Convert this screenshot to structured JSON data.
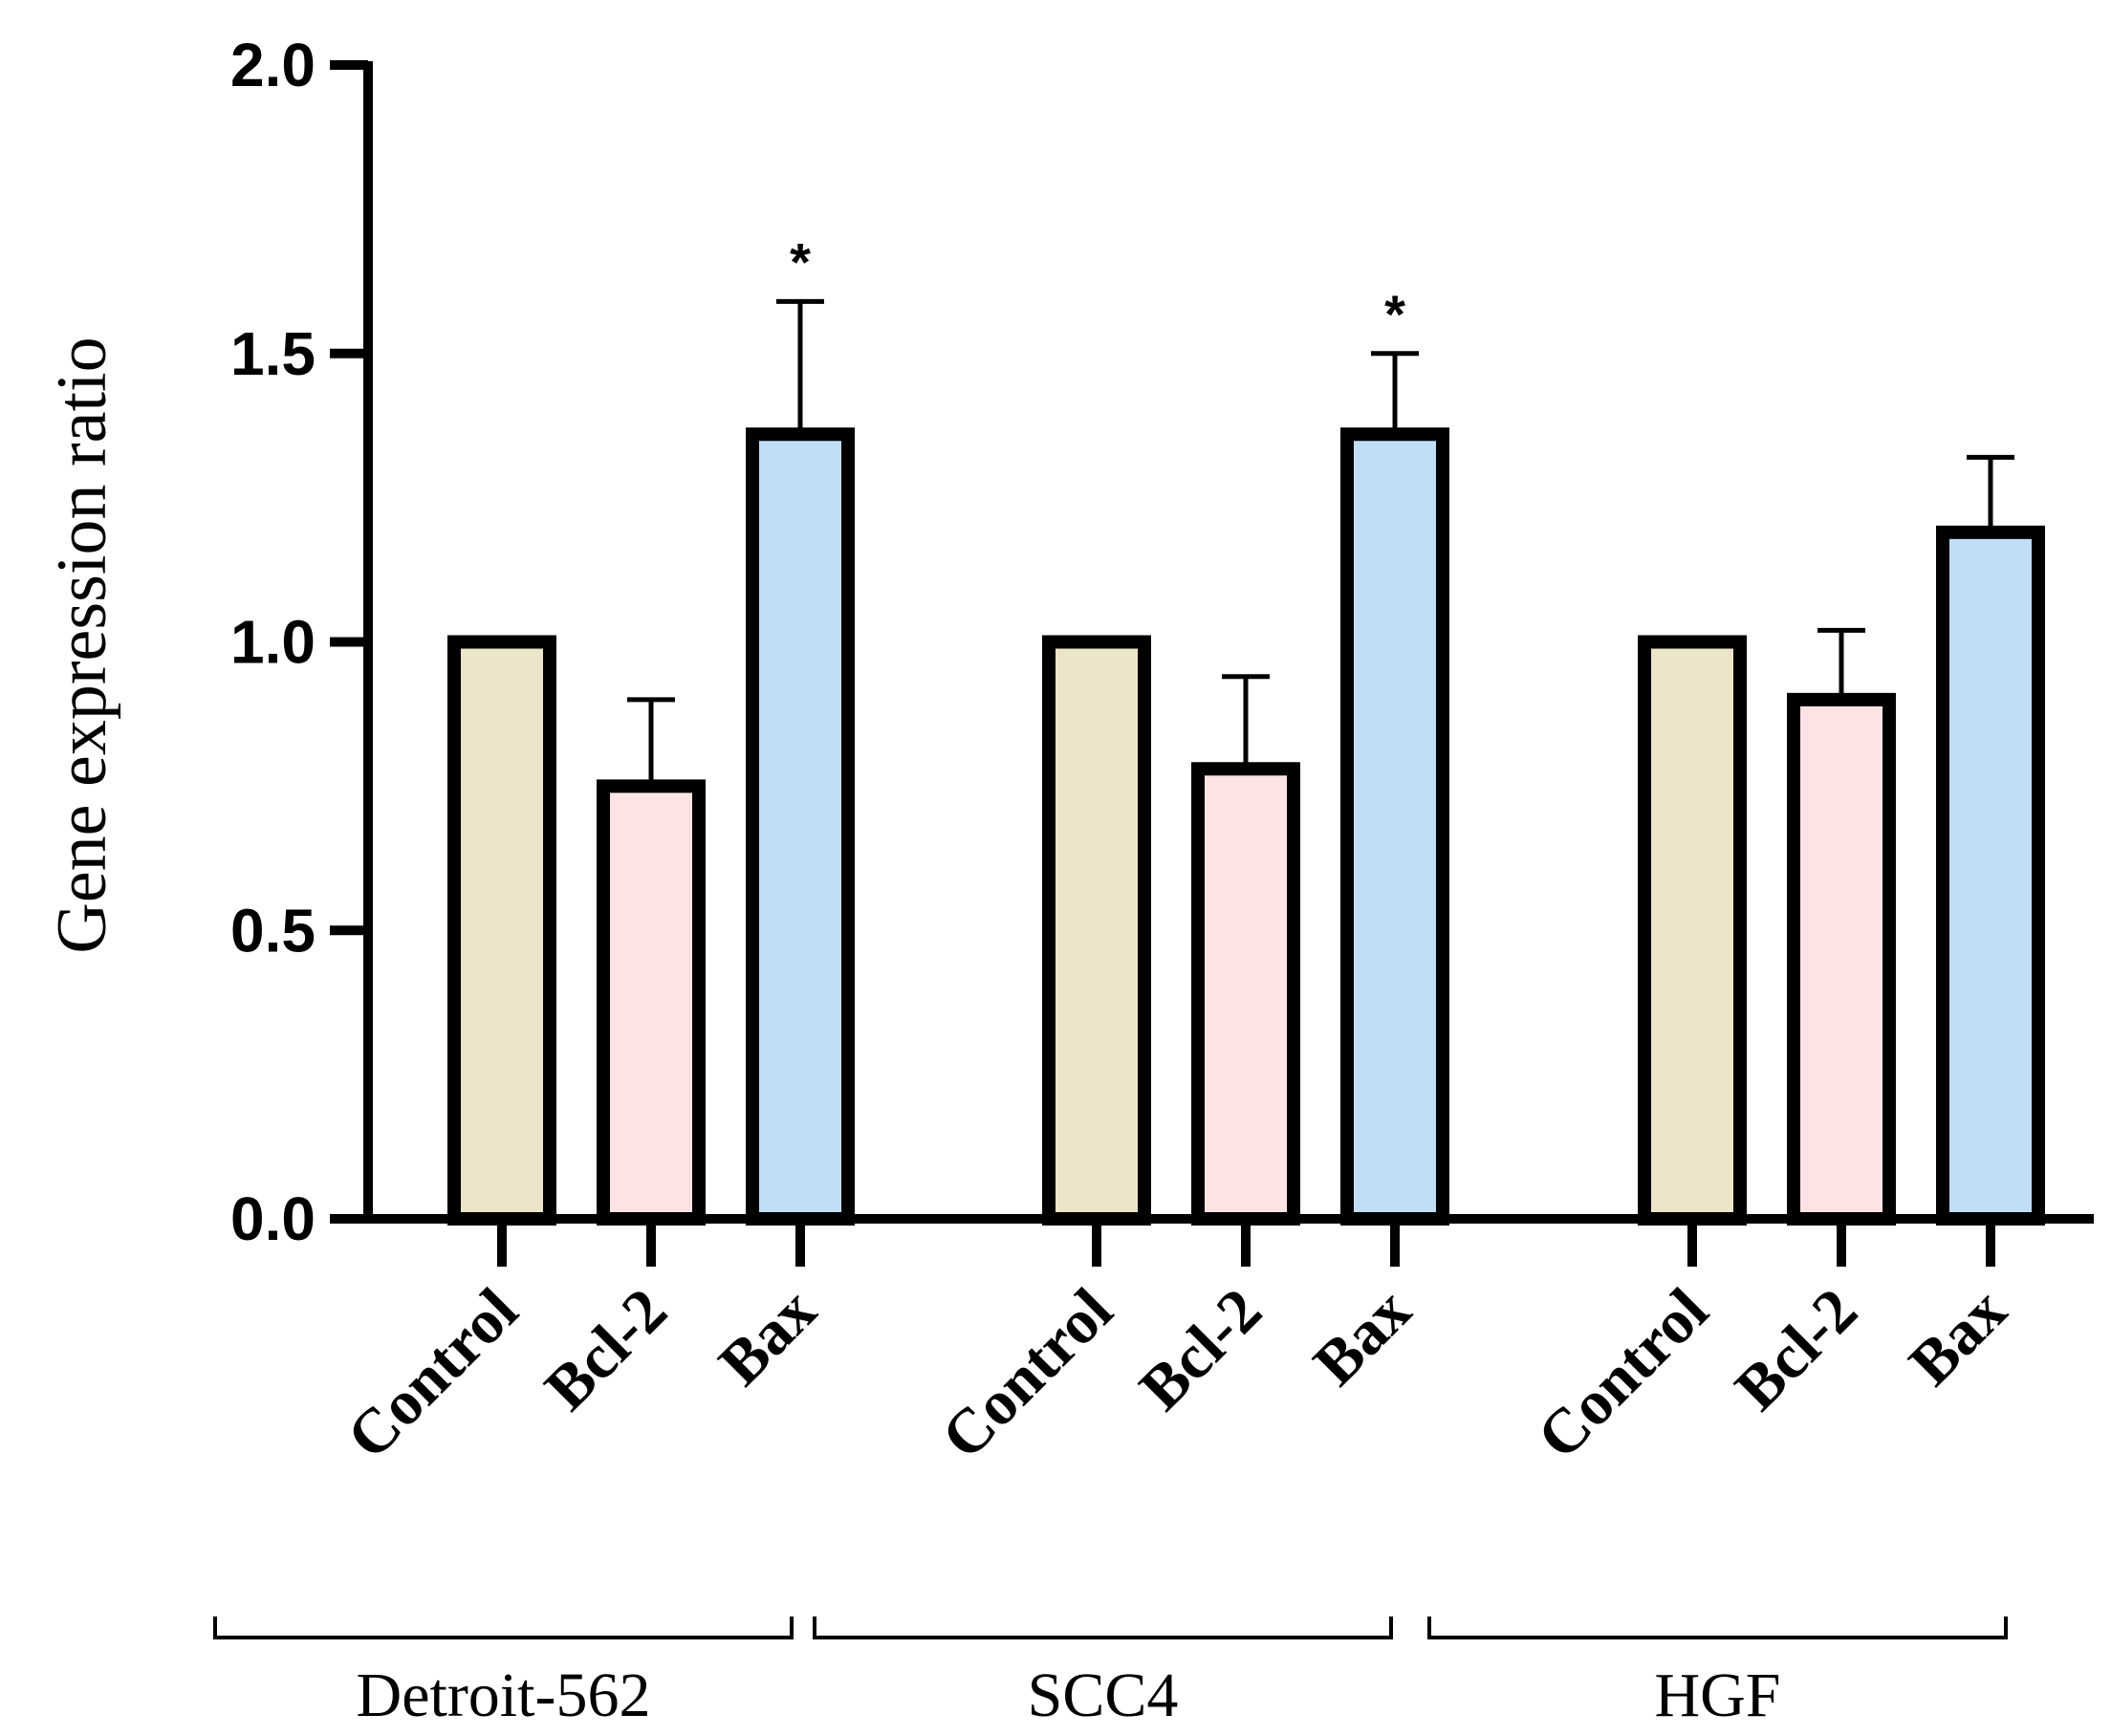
{
  "chart_data": {
    "type": "bar",
    "ylabel": "Gene expression ratio",
    "ylim": [
      0,
      2
    ],
    "yticks": [
      "0.0",
      "0.5",
      "1.0",
      "1.5",
      "2.0"
    ],
    "groups": [
      {
        "name": "Detroit-562",
        "bars": [
          {
            "category": "Control",
            "value": 1.0,
            "error": 0,
            "sig": "",
            "color": "#ede5c9"
          },
          {
            "category": "Bcl-2",
            "value": 0.75,
            "error": 0.15,
            "sig": "",
            "color": "#fde3e3"
          },
          {
            "category": "Bax",
            "value": 1.36,
            "error": 0.23,
            "sig": "*",
            "color": "#c2ddf6"
          }
        ]
      },
      {
        "name": "SCC4",
        "bars": [
          {
            "category": "Control",
            "value": 1.0,
            "error": 0,
            "sig": "",
            "color": "#ede5c9"
          },
          {
            "category": "Bcl-2",
            "value": 0.78,
            "error": 0.16,
            "sig": "",
            "color": "#fde3e3"
          },
          {
            "category": "Bax",
            "value": 1.36,
            "error": 0.14,
            "sig": "*",
            "color": "#c2ddf6"
          }
        ]
      },
      {
        "name": "HGF",
        "bars": [
          {
            "category": "Control",
            "value": 1.0,
            "error": 0,
            "sig": "",
            "color": "#ede5c9"
          },
          {
            "category": "Bcl-2",
            "value": 0.9,
            "error": 0.12,
            "sig": "",
            "color": "#fde3e3"
          },
          {
            "category": "Bax",
            "value": 1.19,
            "error": 0.13,
            "sig": "*",
            "color": "#c2ddf6"
          }
        ]
      }
    ],
    "grid": false
  }
}
